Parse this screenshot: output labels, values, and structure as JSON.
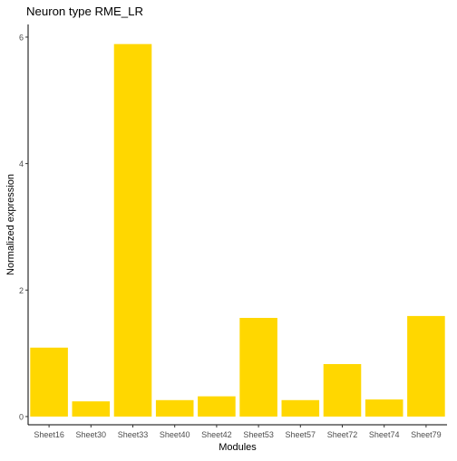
{
  "chart_data": {
    "type": "bar",
    "title": "Neuron type RME_LR",
    "xlabel": "Modules",
    "ylabel": "Normalized expression",
    "categories": [
      "Sheet16",
      "Sheet30",
      "Sheet33",
      "Sheet40",
      "Sheet42",
      "Sheet53",
      "Sheet57",
      "Sheet72",
      "Sheet74",
      "Sheet79"
    ],
    "values": [
      1.09,
      0.24,
      5.89,
      0.26,
      0.32,
      1.56,
      0.26,
      0.83,
      0.27,
      1.59
    ],
    "ylim": [
      -0.13,
      6.2
    ],
    "yticks": [
      0,
      2,
      4,
      6
    ],
    "bar_color": "#FFD700",
    "grid": false,
    "legend": "none"
  }
}
